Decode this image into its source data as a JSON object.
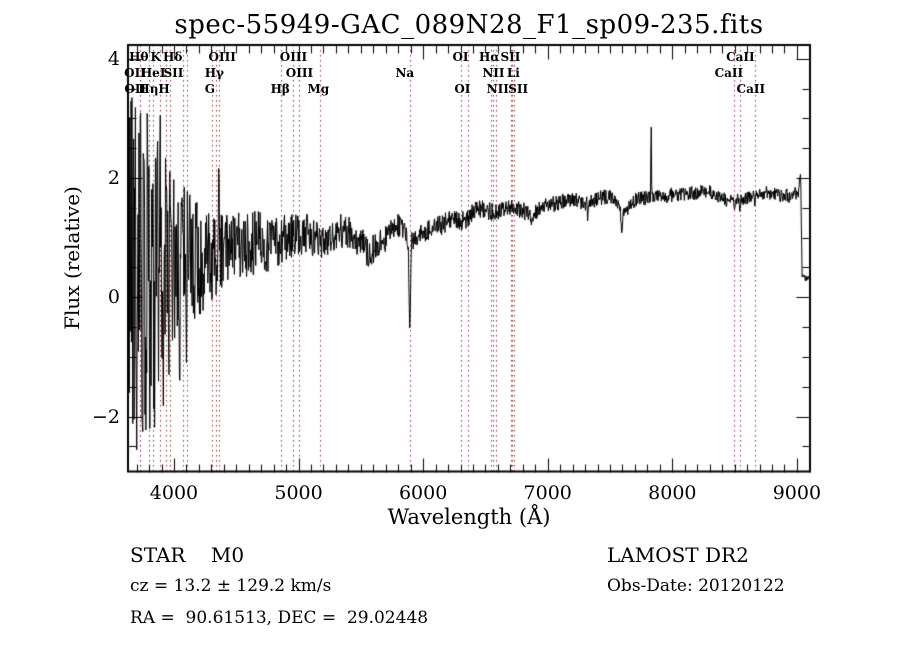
{
  "figure": {
    "title": "spec-55949-GAC_089N28_F1_sp09-235.fits"
  },
  "chart_data": {
    "type": "line",
    "title": "spec-55949-GAC_089N28_F1_sp09-235.fits",
    "xlabel": "Wavelength (Å)",
    "ylabel": "Flux (relative)",
    "xlim": [
      3631,
      9105
    ],
    "ylim": [
      -2.92,
      4.23
    ],
    "x_major_ticks": [
      4000,
      5000,
      6000,
      7000,
      8000,
      9000
    ],
    "x_minor_step": 100,
    "x_minor_range": [
      3700,
      9100
    ],
    "y_major_ticks": [
      -2,
      0,
      2,
      4
    ],
    "y_minor_step": 0.5,
    "y_minor_range": [
      -2.5,
      4
    ],
    "grid": false,
    "legend": "none",
    "tick_direction": "in",
    "series_color": "#000000",
    "frame_color": "#000000",
    "line_marker_color": "#993333",
    "spectral_lines": [
      {
        "label": "Hθ",
        "wavelength": 3798,
        "row": 1,
        "dx": -10
      },
      {
        "label": "K",
        "wavelength": 3934,
        "row": 1,
        "dx": -10
      },
      {
        "label": "Hδ",
        "wavelength": 4102,
        "row": 1,
        "dx": -14
      },
      {
        "label": "OIII",
        "wavelength": 4363,
        "row": 1,
        "dx": 3
      },
      {
        "label": "OIII",
        "wavelength": 4959,
        "row": 1,
        "dx": 0
      },
      {
        "label": "OI",
        "wavelength": 6300,
        "row": 1,
        "dx": 0
      },
      {
        "label": "Hα",
        "wavelength": 6563,
        "row": 1,
        "dx": -4
      },
      {
        "label": "SII",
        "wavelength": 6717,
        "row": 1,
        "dx": -2
      },
      {
        "label": "CaII",
        "wavelength": 8498,
        "row": 1,
        "dx": 6
      },
      {
        "label": "OII",
        "wavelength": 3727,
        "row": 2,
        "dx": -5
      },
      {
        "label": "HeI",
        "wavelength": 3889,
        "row": 2,
        "dx": -7
      },
      {
        "label": "SII",
        "wavelength": 4076,
        "row": 2,
        "dx": -10
      },
      {
        "label": "Hγ",
        "wavelength": 4340,
        "row": 2,
        "dx": -2
      },
      {
        "label": "OIII",
        "wavelength": 5007,
        "row": 2,
        "dx": 0
      },
      {
        "label": "Na",
        "wavelength": 5893,
        "row": 2,
        "dx": -5
      },
      {
        "label": "NII",
        "wavelength": 6548,
        "row": 2,
        "dx": 2
      },
      {
        "label": "Li",
        "wavelength": 6708,
        "row": 2,
        "dx": 2
      },
      {
        "label": "CaII",
        "wavelength": 8542,
        "row": 2,
        "dx": -11
      },
      {
        "label": "OII",
        "wavelength": 3729,
        "row": 3,
        "dx": -5
      },
      {
        "label": "Hη",
        "wavelength": 3835,
        "row": 3,
        "dx": -5
      },
      {
        "label": "H",
        "wavelength": 3968,
        "row": 3,
        "dx": -6
      },
      {
        "label": "G",
        "wavelength": 4304,
        "row": 3,
        "dx": -2
      },
      {
        "label": "Hβ",
        "wavelength": 4861,
        "row": 3,
        "dx": -1
      },
      {
        "label": "Mg",
        "wavelength": 5175,
        "row": 3,
        "dx": -2
      },
      {
        "label": "OI",
        "wavelength": 6363,
        "row": 3,
        "dx": -6
      },
      {
        "label": "NII",
        "wavelength": 6583,
        "row": 3,
        "dx": 2
      },
      {
        "label": "SII",
        "wavelength": 6731,
        "row": 3,
        "dx": 4
      },
      {
        "label": "CaII",
        "wavelength": 8662,
        "row": 3,
        "dx": -4
      }
    ],
    "spectrum": {
      "description": "Noisy blue end rising to smooth red continuum near flux 1.7; deep Na D absorption, telluric A/B band dips, narrow emission spike near 7830, edge artifact drop at 9040",
      "sample_step_angstrom": 3.5,
      "noise_seed": 20120122,
      "continuum_points": [
        [
          3631,
          0.3
        ],
        [
          3700,
          0.45
        ],
        [
          3800,
          0.5
        ],
        [
          3900,
          0.55
        ],
        [
          4000,
          0.55
        ],
        [
          4100,
          0.6
        ],
        [
          4200,
          0.62
        ],
        [
          4300,
          0.72
        ],
        [
          4400,
          0.78
        ],
        [
          4500,
          0.85
        ],
        [
          4600,
          0.9
        ],
        [
          4700,
          0.95
        ],
        [
          4800,
          0.88
        ],
        [
          4900,
          1.0
        ],
        [
          5000,
          1.1
        ],
        [
          5100,
          1.05
        ],
        [
          5175,
          0.85
        ],
        [
          5250,
          1.0
        ],
        [
          5350,
          1.12
        ],
        [
          5430,
          1.08
        ],
        [
          5500,
          0.92
        ],
        [
          5560,
          0.75
        ],
        [
          5620,
          0.85
        ],
        [
          5700,
          1.0
        ],
        [
          5780,
          1.25
        ],
        [
          5850,
          1.1
        ],
        [
          5890,
          0.92
        ],
        [
          5960,
          1.02
        ],
        [
          6050,
          1.12
        ],
        [
          6150,
          1.22
        ],
        [
          6250,
          1.35
        ],
        [
          6300,
          1.27
        ],
        [
          6350,
          1.32
        ],
        [
          6420,
          1.45
        ],
        [
          6470,
          1.5
        ],
        [
          6563,
          1.42
        ],
        [
          6640,
          1.47
        ],
        [
          6700,
          1.5
        ],
        [
          6800,
          1.46
        ],
        [
          6870,
          1.36
        ],
        [
          6950,
          1.5
        ],
        [
          7100,
          1.6
        ],
        [
          7200,
          1.65
        ],
        [
          7300,
          1.55
        ],
        [
          7400,
          1.65
        ],
        [
          7500,
          1.7
        ],
        [
          7560,
          1.52
        ],
        [
          7600,
          1.38
        ],
        [
          7680,
          1.6
        ],
        [
          7750,
          1.65
        ],
        [
          7900,
          1.68
        ],
        [
          8000,
          1.72
        ],
        [
          8100,
          1.72
        ],
        [
          8200,
          1.76
        ],
        [
          8250,
          1.8
        ],
        [
          8350,
          1.72
        ],
        [
          8450,
          1.62
        ],
        [
          8550,
          1.62
        ],
        [
          8650,
          1.7
        ],
        [
          8750,
          1.76
        ],
        [
          8850,
          1.72
        ],
        [
          8950,
          1.7
        ],
        [
          9010,
          1.75
        ],
        [
          9030,
          2.05
        ],
        [
          9042,
          0.32
        ],
        [
          9090,
          0.33
        ],
        [
          9105,
          0.35
        ]
      ],
      "noise_envelope": [
        [
          3631,
          2.3
        ],
        [
          3700,
          2.4
        ],
        [
          3770,
          2.1
        ],
        [
          3840,
          1.8
        ],
        [
          3900,
          1.5
        ],
        [
          3970,
          1.35
        ],
        [
          4050,
          1.05
        ],
        [
          4150,
          0.8
        ],
        [
          4250,
          0.62
        ],
        [
          4400,
          0.5
        ],
        [
          4600,
          0.42
        ],
        [
          4800,
          0.34
        ],
        [
          5000,
          0.28
        ],
        [
          5200,
          0.24
        ],
        [
          5400,
          0.22
        ],
        [
          5600,
          0.18
        ],
        [
          5800,
          0.16
        ],
        [
          6000,
          0.14
        ],
        [
          6300,
          0.12
        ],
        [
          6600,
          0.11
        ],
        [
          7000,
          0.1
        ],
        [
          7300,
          0.09
        ],
        [
          7600,
          0.1
        ],
        [
          8000,
          0.09
        ],
        [
          8400,
          0.09
        ],
        [
          8700,
          0.08
        ],
        [
          9000,
          0.09
        ],
        [
          9035,
          0.05
        ],
        [
          9105,
          0.04
        ]
      ],
      "features": [
        [
          3731,
          3.2,
          8
        ],
        [
          3744,
          -2.6,
          7
        ],
        [
          3760,
          2.7,
          6
        ],
        [
          3775,
          -2.4,
          6
        ],
        [
          3790,
          2.9,
          6
        ],
        [
          3806,
          -2.2,
          6
        ],
        [
          3822,
          2.5,
          6
        ],
        [
          3845,
          -2.3,
          6
        ],
        [
          3866,
          2.6,
          6
        ],
        [
          3890,
          3.05,
          7
        ],
        [
          3915,
          -1.9,
          6
        ],
        [
          3938,
          2.2,
          6
        ],
        [
          3958,
          -1.5,
          5
        ],
        [
          3972,
          2.35,
          6
        ],
        [
          4046,
          -1.6,
          6
        ],
        [
          4101,
          -1.3,
          6
        ],
        [
          4360,
          2.45,
          6
        ],
        [
          5893,
          -0.62,
          14
        ],
        [
          6869,
          1.2,
          9
        ],
        [
          7320,
          1.28,
          7
        ],
        [
          7594,
          1.05,
          9
        ],
        [
          7830,
          3.18,
          5
        ],
        [
          8498,
          1.45,
          6
        ],
        [
          8542,
          1.42,
          6
        ],
        [
          8662,
          1.5,
          6
        ]
      ]
    }
  },
  "annotations": {
    "class_line": "STAR    M0",
    "survey": "LAMOST DR2",
    "cz_line": "cz = 13.2 ± 129.2 km/s",
    "obs_date_line": "Obs-Date: 20120122",
    "coord_line": "RA =  90.61513, DEC =  29.02448"
  }
}
